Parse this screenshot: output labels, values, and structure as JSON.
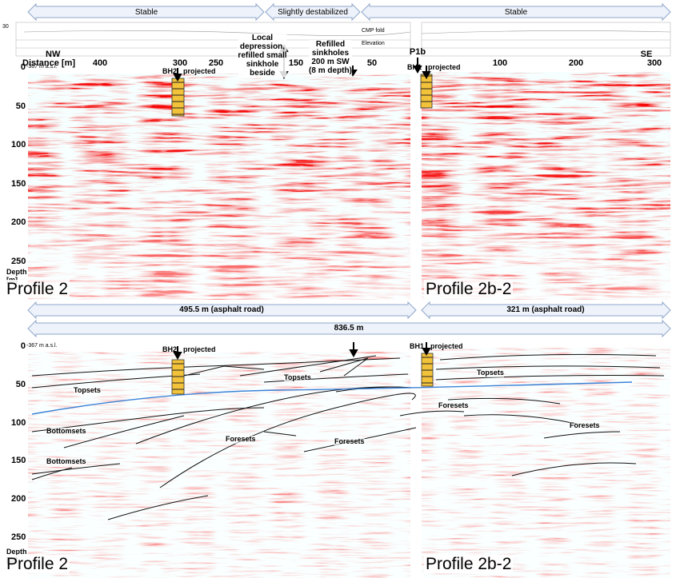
{
  "stability": [
    "Stable",
    "Slightly destabilized",
    "Stable"
  ],
  "header_plot": {
    "axis_top": "30",
    "legend": [
      "CMP fold",
      "Elevation"
    ]
  },
  "distance_axis": {
    "label": "Distance [m]",
    "left_end": "NW",
    "right_end": "SE",
    "profile_2_ticks": [
      "400",
      "300",
      "250",
      "150",
      "50"
    ],
    "break_label": "P1b",
    "profile_2b2_ticks": [
      "100",
      "200",
      "300"
    ]
  },
  "annotations": {
    "depression": "Local\ndepression,\nrefilled small\nsinkhole\nbeside",
    "sinkholes": "Refilled\nsinkholes\n200 m SW\n(8 m depth)"
  },
  "lengths": [
    "495.5 m (asphalt road)",
    "321 m (asphalt road)",
    "836.5 m"
  ],
  "panels": [
    {
      "datum": "-367 m a.s.l.",
      "depth_ticks": [
        0,
        50,
        100,
        150,
        200,
        250
      ],
      "depth_label": "Depth\n[m]",
      "boreholes": [
        {
          "name": "BH2",
          "note": "projected"
        },
        {
          "name": "BH1",
          "note": "projected"
        }
      ],
      "profiles": [
        "Profile 2",
        "Profile 2b-2"
      ]
    },
    {
      "datum": "-367 m a.s.l.",
      "depth_ticks": [
        0,
        50,
        100,
        150,
        200,
        250
      ],
      "depth_label": "Depth\n[m]",
      "boreholes": [
        {
          "name": "BH2",
          "note": "projected"
        },
        {
          "name": "BH1",
          "note": "projected"
        }
      ],
      "profiles": [
        "Profile 2",
        "Profile 2b-2"
      ],
      "horizons": [
        "Topsets",
        "Topsets",
        "Topsets",
        "Bottomsets",
        "Bottomsets",
        "Foresets",
        "Foresets",
        "Foresets",
        "Foresets"
      ]
    }
  ]
}
